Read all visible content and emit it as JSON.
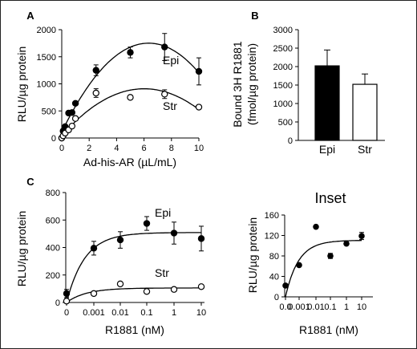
{
  "chart_data": [
    {
      "panel_label": "A",
      "type": "scatter",
      "xlabel": "Ad-his-AR (µL/mL)",
      "ylabel": "RLU/µg protein",
      "xlim": [
        0,
        10
      ],
      "ylim": [
        0,
        2000
      ],
      "xticks": [
        0,
        2,
        4,
        6,
        8,
        10
      ],
      "yticks": [
        0,
        500,
        1000,
        1500,
        2000
      ],
      "series": [
        {
          "name": "Epi",
          "marker": "filled",
          "points": [
            [
              0,
              0
            ],
            [
              0.1,
              130
            ],
            [
              0.25,
              210
            ],
            [
              0.5,
              460
            ],
            [
              0.75,
              470
            ],
            [
              1,
              640
            ],
            [
              2.5,
              1250
            ],
            [
              5,
              1580
            ],
            [
              7.5,
              1680
            ],
            [
              10,
              1230
            ]
          ],
          "errors": [
            0,
            0,
            0,
            0,
            0,
            0,
            100,
            100,
            250,
            250
          ]
        },
        {
          "name": "Str",
          "marker": "open",
          "points": [
            [
              0,
              0
            ],
            [
              0.1,
              40
            ],
            [
              0.25,
              90
            ],
            [
              0.5,
              150
            ],
            [
              0.75,
              220
            ],
            [
              1,
              360
            ],
            [
              2.5,
              830
            ],
            [
              5,
              750
            ],
            [
              7.5,
              810
            ],
            [
              10,
              570
            ]
          ],
          "errors": [
            0,
            0,
            0,
            0,
            0,
            0,
            80,
            0,
            80,
            0
          ]
        }
      ]
    },
    {
      "panel_label": "B",
      "type": "bar",
      "ylabel": "Bound 3H R1881 (fmol/µg protein)",
      "ylim": [
        0,
        3000
      ],
      "yticks": [
        0,
        500,
        1000,
        1500,
        2000,
        2500,
        3000
      ],
      "categories": [
        "Epi",
        "Str"
      ],
      "values": [
        2020,
        1520
      ],
      "errors": [
        430,
        280
      ],
      "colors": [
        "#000000",
        "#ffffff"
      ]
    },
    {
      "panel_label": "C",
      "type": "scatter",
      "xlabel": "R1881 (nM)",
      "ylabel": "RLU/µg protein",
      "ylim": [
        0,
        800
      ],
      "xticks": [
        "0",
        "0.001",
        "0.01",
        "0.1",
        "1",
        "10"
      ],
      "yticks": [
        0,
        200,
        400,
        600,
        800
      ],
      "series": [
        {
          "name": "Epi",
          "marker": "filled",
          "values": [
            65,
            395,
            455,
            575,
            505,
            465
          ],
          "errors": [
            30,
            50,
            60,
            50,
            80,
            90
          ]
        },
        {
          "name": "Str",
          "marker": "open",
          "values": [
            10,
            65,
            135,
            80,
            95,
            115
          ],
          "errors": [
            0,
            15,
            0,
            0,
            10,
            10
          ]
        }
      ]
    },
    {
      "title": "Inset",
      "type": "scatter",
      "xlabel": "R1881 (nM)",
      "ylabel": "RLU/µg protein",
      "ylim": [
        0,
        160
      ],
      "xticks": [
        "0.0",
        "0.001",
        "0.01",
        "0.1",
        "1",
        "10"
      ],
      "yticks": [
        0,
        40,
        80,
        120,
        160
      ],
      "series": [
        {
          "marker": "filled",
          "values": [
            22,
            62,
            137,
            80,
            104,
            119
          ],
          "errors": [
            0,
            0,
            0,
            5,
            3,
            7
          ]
        }
      ]
    }
  ]
}
